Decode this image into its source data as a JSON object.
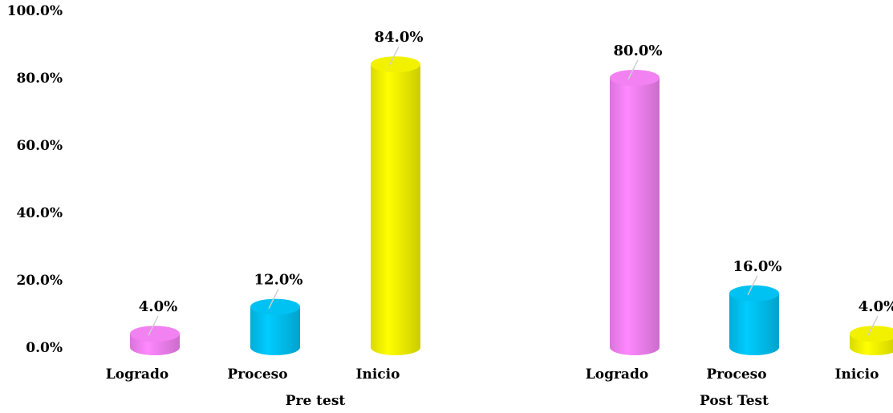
{
  "chart_data": {
    "type": "bar",
    "style": "3d-cylinder",
    "ylim": [
      0,
      100
    ],
    "y_ticks": [
      "0.0%",
      "20.0%",
      "40.0%",
      "60.0%",
      "80.0%",
      "100.0%"
    ],
    "y_tick_values": [
      0,
      20,
      40,
      60,
      80,
      100
    ],
    "grid": false,
    "groups": [
      {
        "label": "Pre test",
        "bars": [
          {
            "category": "Logrado",
            "value": 4.0,
            "value_label": "4.0%",
            "color": "#ff88ff"
          },
          {
            "category": "Proceso",
            "value": 12.0,
            "value_label": "12.0%",
            "color": "#00ccff"
          },
          {
            "category": "Inicio",
            "value": 84.0,
            "value_label": "84.0%",
            "color": "#ffff00"
          }
        ]
      },
      {
        "label": "Post Test",
        "bars": [
          {
            "category": "Logrado",
            "value": 80.0,
            "value_label": "80.0%",
            "color": "#ff88ff"
          },
          {
            "category": "Proceso",
            "value": 16.0,
            "value_label": "16.0%",
            "color": "#00ccff"
          },
          {
            "category": "Inicio",
            "value": 4.0,
            "value_label": "4.0%",
            "color": "#ffff00"
          }
        ]
      }
    ]
  }
}
